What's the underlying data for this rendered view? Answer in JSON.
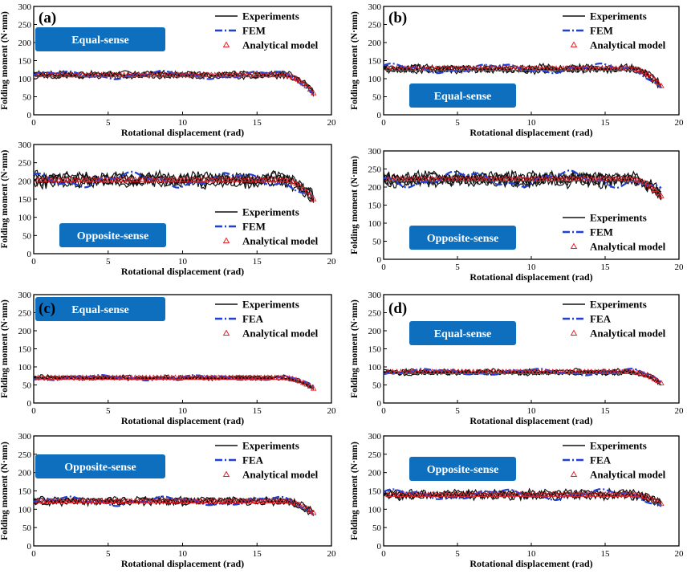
{
  "figure_title": "",
  "chart_data": [
    {
      "id": "a1",
      "panel_label": "(a)",
      "type": "line",
      "badge": "Equal-sense",
      "ylim": [
        0,
        300
      ],
      "xlim": [
        0,
        20
      ],
      "yticks": [
        0,
        50,
        100,
        150,
        200,
        250,
        300
      ],
      "xticks": [
        0,
        5,
        10,
        15,
        20
      ],
      "xlabel": "Rotational displacement (rad)",
      "ylabel": "Folding moment (N·mm)",
      "level": 110,
      "tail_end": 60,
      "series": [
        {
          "name": "Experiments"
        },
        {
          "name": "FEM"
        },
        {
          "name": "Analytical model"
        }
      ],
      "legend": "top-right"
    },
    {
      "id": "b1",
      "panel_label": "(b)",
      "type": "line",
      "badge": "Equal-sense",
      "ylim": [
        0,
        300
      ],
      "xlim": [
        0,
        20
      ],
      "yticks": [
        0,
        50,
        100,
        150,
        200,
        250,
        300
      ],
      "xticks": [
        0,
        5,
        10,
        15,
        20
      ],
      "xlabel": "Rotational displacement (rad)",
      "ylabel": "Folding moment (N·mm)",
      "level": 128,
      "tail_end": 80,
      "series": [
        {
          "name": "Experiments"
        },
        {
          "name": "FEM"
        },
        {
          "name": "Analytical model"
        }
      ],
      "legend": "top-right"
    },
    {
      "id": "a2",
      "panel_label": "",
      "type": "line",
      "badge": "Opposite-sense",
      "ylim": [
        0,
        300
      ],
      "xlim": [
        0,
        20
      ],
      "yticks": [
        0,
        50,
        100,
        150,
        200,
        250,
        300
      ],
      "xticks": [
        0,
        5,
        10,
        15,
        20
      ],
      "xlabel": "Rotational displacement (rad)",
      "ylabel": "Folding moment (N·mm)",
      "level": 203,
      "tail_end": 150,
      "series": [
        {
          "name": "Experiments"
        },
        {
          "name": "FEM"
        },
        {
          "name": "Analytical model"
        }
      ],
      "legend": "bottom-right"
    },
    {
      "id": "b2",
      "panel_label": "",
      "type": "line",
      "badge": "Opposite-sense",
      "ylim": [
        0,
        300
      ],
      "xlim": [
        0,
        20
      ],
      "yticks": [
        0,
        50,
        100,
        150,
        200,
        250,
        300
      ],
      "xticks": [
        0,
        5,
        10,
        15,
        20
      ],
      "xlabel": "Rotational displacement (rad)",
      "ylabel": "Folding moment (N·mm)",
      "level": 222,
      "tail_end": 175,
      "series": [
        {
          "name": "Experiments"
        },
        {
          "name": "FEM"
        },
        {
          "name": "Analytical model"
        }
      ],
      "legend": "bottom-right"
    },
    {
      "id": "c1",
      "panel_label": "(c)",
      "type": "line",
      "badge": "Equal-sense",
      "ylim": [
        0,
        300
      ],
      "xlim": [
        0,
        20
      ],
      "yticks": [
        0,
        50,
        100,
        150,
        200,
        250,
        300
      ],
      "xticks": [
        0,
        5,
        10,
        15,
        20
      ],
      "xlabel": "Rotational displacement (rad)",
      "ylabel": "Folding moment (N·mm)",
      "level": 70,
      "tail_end": 40,
      "series": [
        {
          "name": "Experiments"
        },
        {
          "name": "FEA"
        },
        {
          "name": "Analytical model"
        }
      ],
      "legend": "top-right"
    },
    {
      "id": "d1",
      "panel_label": "(d)",
      "type": "line",
      "badge": "Equal-sense",
      "ylim": [
        0,
        300
      ],
      "xlim": [
        0,
        20
      ],
      "yticks": [
        0,
        50,
        100,
        150,
        200,
        250,
        300
      ],
      "xticks": [
        0,
        5,
        10,
        15,
        20
      ],
      "xlabel": "Rotational displacement (rad)",
      "ylabel": "Folding moment (N·mm)",
      "level": 86,
      "tail_end": 55,
      "series": [
        {
          "name": "Experiments"
        },
        {
          "name": "FEA"
        },
        {
          "name": "Analytical model"
        }
      ],
      "legend": "top-right"
    },
    {
      "id": "c2",
      "panel_label": "",
      "type": "line",
      "badge": "Opposite-sense",
      "ylim": [
        0,
        300
      ],
      "xlim": [
        0,
        20
      ],
      "yticks": [
        0,
        50,
        100,
        150,
        200,
        250,
        300
      ],
      "xticks": [
        0,
        5,
        10,
        15,
        20
      ],
      "xlabel": "Rotational displacement (rad)",
      "ylabel": "Folding moment (N·mm)",
      "level": 122,
      "tail_end": 90,
      "series": [
        {
          "name": "Experiments"
        },
        {
          "name": "FEA"
        },
        {
          "name": "Analytical model"
        }
      ],
      "legend": "top-right"
    },
    {
      "id": "d2",
      "panel_label": "",
      "type": "line",
      "badge": "Opposite-sense",
      "ylim": [
        0,
        300
      ],
      "xlim": [
        0,
        20
      ],
      "yticks": [
        0,
        50,
        100,
        150,
        200,
        250,
        300
      ],
      "xticks": [
        0,
        5,
        10,
        15,
        20
      ],
      "xlabel": "Rotational displacement (rad)",
      "ylabel": "Folding moment (N·mm)",
      "level": 140,
      "tail_end": 115,
      "series": [
        {
          "name": "Experiments"
        },
        {
          "name": "FEA"
        },
        {
          "name": "Analytical model"
        }
      ],
      "legend": "top-right"
    }
  ],
  "colors": {
    "experiments": "#111111",
    "fem": "#1f3fd6",
    "analytical": "#e8222a",
    "badge": "#0d6fbd",
    "badge_text": "#ffffff"
  }
}
